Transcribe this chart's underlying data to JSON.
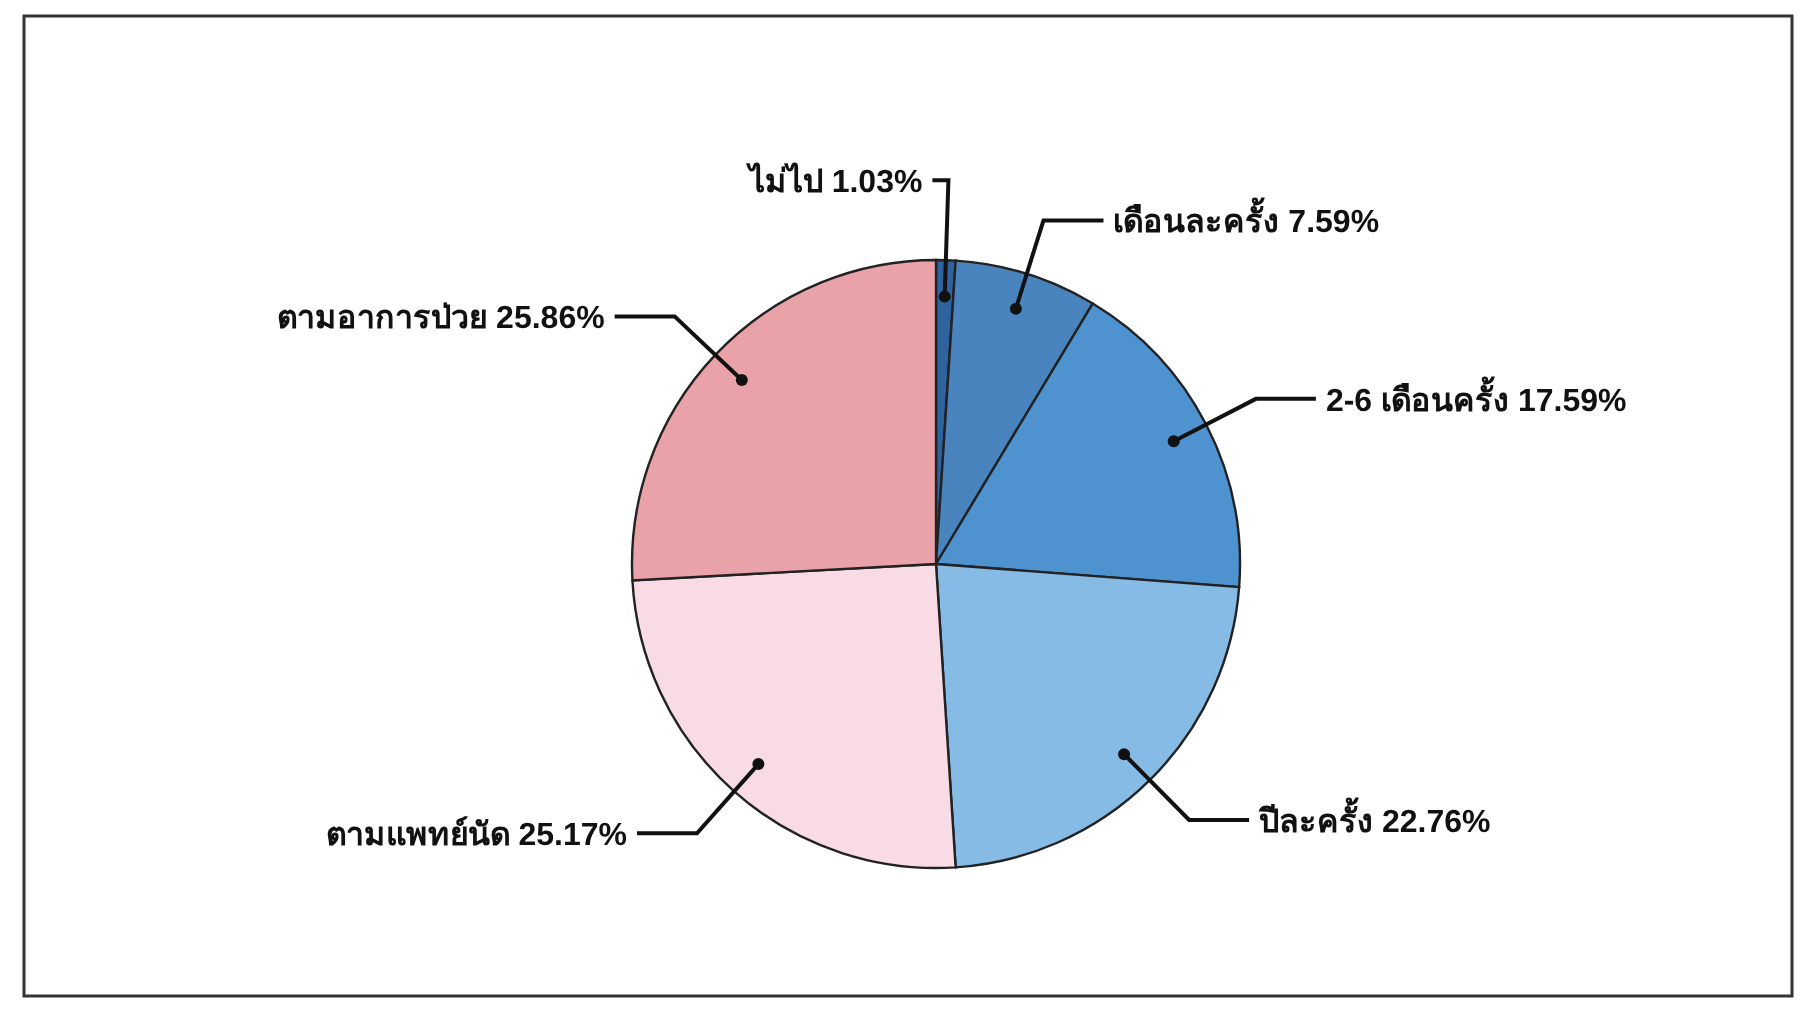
{
  "chart_data": {
    "type": "pie",
    "categories": [
      "ไม่ไป",
      "เดือนละครั้ง",
      "2-6 เดือนครั้ง",
      "ปีละครั้ง",
      "ตามแพทย์นัด",
      "ตามอาการป่วย"
    ],
    "values": [
      1.03,
      7.59,
      17.59,
      22.76,
      25.17,
      25.86
    ],
    "value_labels": [
      "1.03%",
      "7.59%",
      "17.59%",
      "22.76%",
      "25.17%",
      "25.86%"
    ],
    "colors": [
      "#2f63a0",
      "#4a84bf",
      "#4e92cf",
      "#86bbe6",
      "#f8dbe5",
      "#e9a3a8"
    ]
  }
}
